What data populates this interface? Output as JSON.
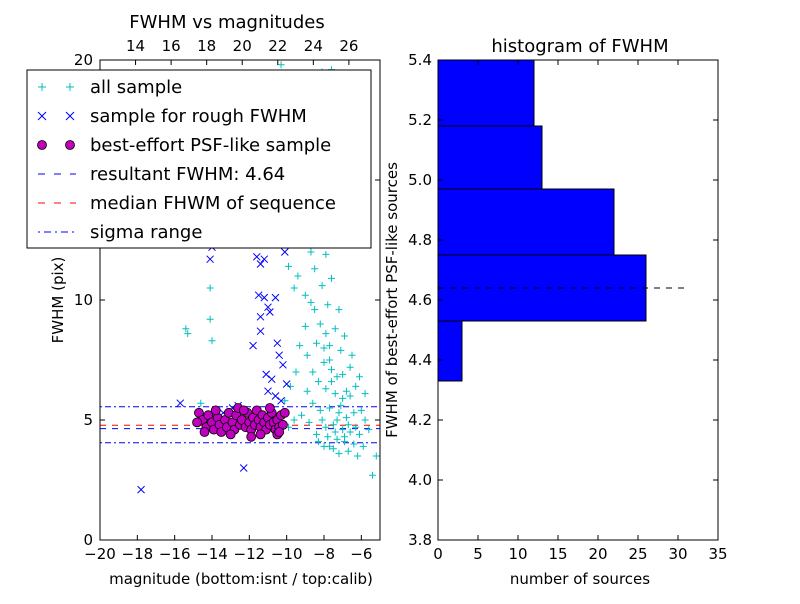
{
  "colors": {
    "all_sample": "#00bfbf",
    "rough_sample": "#0000ff",
    "best_sample_fill": "#bf00bf",
    "resultant_line": "#0000ff",
    "median_line": "#ff0000",
    "sigma_line": "#0000ff",
    "hist_bar": "#0000ff"
  },
  "chart_data": [
    {
      "type": "scatter",
      "title": "FWHM vs magnitudes",
      "xlabel": "magnitude (bottom:isnt / top:calib)",
      "ylabel": "FWHM (pix)",
      "xlim": [
        -20,
        -5
      ],
      "ylim": [
        0,
        20
      ],
      "top_xlim": [
        12,
        27.75
      ],
      "x_ticks": [
        "−20",
        "−18",
        "−16",
        "−14",
        "−12",
        "−10",
        "−8",
        "−6"
      ],
      "y_ticks": [
        "0",
        "5",
        "10",
        "15",
        "20"
      ],
      "top_ticks": [
        "14",
        "16",
        "18",
        "20",
        "22",
        "24",
        "26"
      ],
      "legend_position": "upper-left",
      "legend": [
        {
          "label": "all sample"
        },
        {
          "label": "sample for rough FWHM"
        },
        {
          "label": "best-effort PSF-like sample"
        },
        {
          "label": "resultant FWHM: 4.64"
        },
        {
          "label": "median FHWM of sequence"
        },
        {
          "label": "sigma range"
        }
      ],
      "hlines": {
        "resultant": 4.64,
        "median": 4.78,
        "sigma_low": 4.05,
        "sigma_high": 5.55
      },
      "series": {
        "all_sample": [
          [
            -15.4,
            8.8
          ],
          [
            -15.3,
            8.6
          ],
          [
            -14.1,
            9.2
          ],
          [
            -14.0,
            8.3
          ],
          [
            -14.1,
            10.5
          ],
          [
            -14.6,
            5.7
          ],
          [
            -14.4,
            12.5
          ],
          [
            -13.1,
            16.2
          ],
          [
            -10.3,
            19.8
          ],
          [
            -8.1,
            19.5
          ],
          [
            -7.6,
            19.6
          ],
          [
            -9.5,
            17.1
          ],
          [
            -9.1,
            16.0
          ],
          [
            -8.8,
            14.5
          ],
          [
            -9.3,
            13.8
          ],
          [
            -8.6,
            12.6
          ],
          [
            -9.7,
            13.2
          ],
          [
            -9.9,
            11.4
          ],
          [
            -9.4,
            11.0
          ],
          [
            -9.6,
            10.5
          ],
          [
            -9.0,
            10.2
          ],
          [
            -8.5,
            9.6
          ],
          [
            -8.2,
            9.0
          ],
          [
            -7.9,
            8.6
          ],
          [
            -7.7,
            8.1
          ],
          [
            -8.4,
            8.2
          ],
          [
            -8.9,
            7.7
          ],
          [
            -8.0,
            7.4
          ],
          [
            -7.6,
            7.1
          ],
          [
            -7.3,
            6.8
          ],
          [
            -8.3,
            6.6
          ],
          [
            -7.9,
            6.3
          ],
          [
            -7.4,
            6.1
          ],
          [
            -7.0,
            5.9
          ],
          [
            -8.6,
            5.7
          ],
          [
            -7.7,
            5.5
          ],
          [
            -7.2,
            5.3
          ],
          [
            -6.8,
            5.1
          ],
          [
            -8.1,
            5.0
          ],
          [
            -7.5,
            4.8
          ],
          [
            -7.0,
            4.6
          ],
          [
            -6.6,
            4.5
          ],
          [
            -8.8,
            4.9
          ],
          [
            -9.2,
            5.2
          ],
          [
            -9.6,
            5.0
          ],
          [
            -9.9,
            4.7
          ],
          [
            -8.4,
            4.4
          ],
          [
            -7.8,
            4.3
          ],
          [
            -7.3,
            4.2
          ],
          [
            -6.9,
            4.1
          ],
          [
            -6.4,
            4.0
          ],
          [
            -8.0,
            3.9
          ],
          [
            -7.5,
            3.8
          ],
          [
            -6.7,
            3.7
          ],
          [
            -7.2,
            3.6
          ],
          [
            -6.2,
            3.5
          ],
          [
            -5.9,
            3.9
          ],
          [
            -5.6,
            4.6
          ],
          [
            -5.4,
            2.7
          ],
          [
            -5.2,
            3.5
          ],
          [
            -6.0,
            5.4
          ],
          [
            -6.3,
            6.4
          ],
          [
            -6.6,
            7.2
          ],
          [
            -7.1,
            7.9
          ],
          [
            -7.4,
            8.8
          ],
          [
            -7.8,
            9.8
          ],
          [
            -8.1,
            10.6
          ],
          [
            -8.5,
            11.3
          ],
          [
            -8.7,
            12.0
          ],
          [
            -9.0,
            12.8
          ],
          [
            -9.2,
            14.8
          ],
          [
            -8.3,
            13.5
          ],
          [
            -7.9,
            11.9
          ],
          [
            -7.6,
            10.9
          ],
          [
            -7.2,
            9.6
          ],
          [
            -6.9,
            8.5
          ],
          [
            -6.5,
            7.7
          ],
          [
            -6.1,
            6.8
          ],
          [
            -5.8,
            6.1
          ],
          [
            -9.8,
            6.4
          ],
          [
            -10.1,
            5.8
          ],
          [
            -9.5,
            7.0
          ],
          [
            -9.3,
            8.1
          ],
          [
            -9.0,
            8.9
          ],
          [
            -8.7,
            9.9
          ],
          [
            -8.9,
            6.2
          ],
          [
            -8.2,
            5.4
          ],
          [
            -7.6,
            6.6
          ],
          [
            -7.1,
            5.6
          ],
          [
            -6.8,
            6.2
          ],
          [
            -6.4,
            5.3
          ],
          [
            -7.9,
            4.7
          ],
          [
            -7.3,
            5.0
          ],
          [
            -6.7,
            4.8
          ],
          [
            -6.1,
            4.4
          ],
          [
            -5.8,
            5.0
          ],
          [
            -8.6,
            7.0
          ],
          [
            -8.0,
            8.0
          ],
          [
            -7.7,
            7.5
          ],
          [
            -7.0,
            6.9
          ],
          [
            -6.6,
            6.0
          ],
          [
            -7.4,
            4.5
          ],
          [
            -6.9,
            4.3
          ],
          [
            -6.3,
            4.7
          ],
          [
            -8.3,
            4.1
          ],
          [
            -7.7,
            3.9
          ]
        ],
        "rough_sample": [
          [
            -17.8,
            2.1
          ],
          [
            -12.3,
            3.0
          ],
          [
            -15.7,
            5.7
          ],
          [
            -14.0,
            12.2
          ],
          [
            -14.1,
            11.7
          ],
          [
            -13.0,
            15.6
          ],
          [
            -12.9,
            14.6
          ],
          [
            -11.6,
            11.8
          ],
          [
            -11.4,
            11.5
          ],
          [
            -11.2,
            11.7
          ],
          [
            -11.5,
            10.2
          ],
          [
            -11.2,
            10.1
          ],
          [
            -11.0,
            9.7
          ],
          [
            -11.4,
            9.3
          ],
          [
            -10.9,
            9.5
          ],
          [
            -11.8,
            8.1
          ],
          [
            -11.4,
            8.7
          ],
          [
            -10.6,
            10.1
          ],
          [
            -10.5,
            8.2
          ],
          [
            -10.4,
            7.7
          ],
          [
            -11.1,
            6.9
          ],
          [
            -10.8,
            6.7
          ],
          [
            -10.2,
            7.3
          ],
          [
            -10.0,
            6.5
          ],
          [
            -11.0,
            6.2
          ],
          [
            -10.6,
            6.0
          ],
          [
            -10.3,
            5.8
          ],
          [
            -12.6,
            5.6
          ],
          [
            -12.9,
            5.5
          ],
          [
            -13.4,
            5.3
          ],
          [
            -9.6,
            16.4
          ],
          [
            -10.6,
            15.1
          ],
          [
            -11.0,
            13.7
          ],
          [
            -10.4,
            12.8
          ],
          [
            -10.1,
            12.0
          ]
        ],
        "best_sample": [
          [
            -14.7,
            5.3
          ],
          [
            -14.5,
            5.0
          ],
          [
            -14.3,
            4.7
          ],
          [
            -14.2,
            5.2
          ],
          [
            -14.0,
            4.9
          ],
          [
            -13.9,
            4.6
          ],
          [
            -13.7,
            5.1
          ],
          [
            -13.6,
            4.8
          ],
          [
            -13.5,
            4.5
          ],
          [
            -13.3,
            5.0
          ],
          [
            -13.2,
            4.7
          ],
          [
            -13.1,
            5.3
          ],
          [
            -12.9,
            4.9
          ],
          [
            -12.8,
            4.6
          ],
          [
            -12.7,
            5.2
          ],
          [
            -12.5,
            4.8
          ],
          [
            -12.4,
            5.0
          ],
          [
            -12.2,
            4.7
          ],
          [
            -12.1,
            5.3
          ],
          [
            -12.0,
            4.9
          ],
          [
            -11.9,
            4.6
          ],
          [
            -11.8,
            5.1
          ],
          [
            -11.7,
            4.8
          ],
          [
            -11.6,
            5.4
          ],
          [
            -11.5,
            5.0
          ],
          [
            -11.4,
            4.7
          ],
          [
            -11.3,
            5.2
          ],
          [
            -11.2,
            4.9
          ],
          [
            -11.1,
            4.6
          ],
          [
            -11.0,
            5.1
          ],
          [
            -10.9,
            4.8
          ],
          [
            -10.8,
            5.3
          ],
          [
            -10.7,
            4.9
          ],
          [
            -10.6,
            4.6
          ],
          [
            -10.5,
            5.0
          ],
          [
            -10.4,
            4.7
          ],
          [
            -10.3,
            5.2
          ],
          [
            -10.2,
            4.8
          ],
          [
            -14.8,
            4.9
          ],
          [
            -13.8,
            5.4
          ],
          [
            -12.6,
            5.5
          ],
          [
            -11.4,
            4.4
          ],
          [
            -10.9,
            5.5
          ],
          [
            -14.4,
            4.5
          ],
          [
            -13.0,
            4.4
          ],
          [
            -12.3,
            5.4
          ],
          [
            -11.9,
            4.3
          ],
          [
            -10.5,
            4.4
          ],
          [
            -10.1,
            5.3
          ],
          [
            -10.4,
            4.5
          ]
        ]
      }
    },
    {
      "type": "bar",
      "orientation": "horizontal",
      "title": "histogram of FWHM",
      "xlabel": "number of sources",
      "ylabel": "FWHM of best-effort PSF-like sources",
      "xlim": [
        0,
        35
      ],
      "ylim": [
        3.8,
        5.4
      ],
      "x_ticks": [
        "0",
        "5",
        "10",
        "15",
        "20",
        "25",
        "30",
        "35"
      ],
      "y_ticks": [
        "3.8",
        "4.0",
        "4.2",
        "4.4",
        "4.6",
        "4.8",
        "5.0",
        "5.2",
        "5.4"
      ],
      "bins": [
        {
          "from": 4.33,
          "to": 4.53,
          "count": 3
        },
        {
          "from": 4.53,
          "to": 4.75,
          "count": 26
        },
        {
          "from": 4.75,
          "to": 4.97,
          "count": 22
        },
        {
          "from": 4.97,
          "to": 5.18,
          "count": 13
        },
        {
          "from": 5.18,
          "to": 5.4,
          "count": 12
        }
      ],
      "reference_line": 4.64,
      "reference_line_extent": 31.3
    }
  ]
}
